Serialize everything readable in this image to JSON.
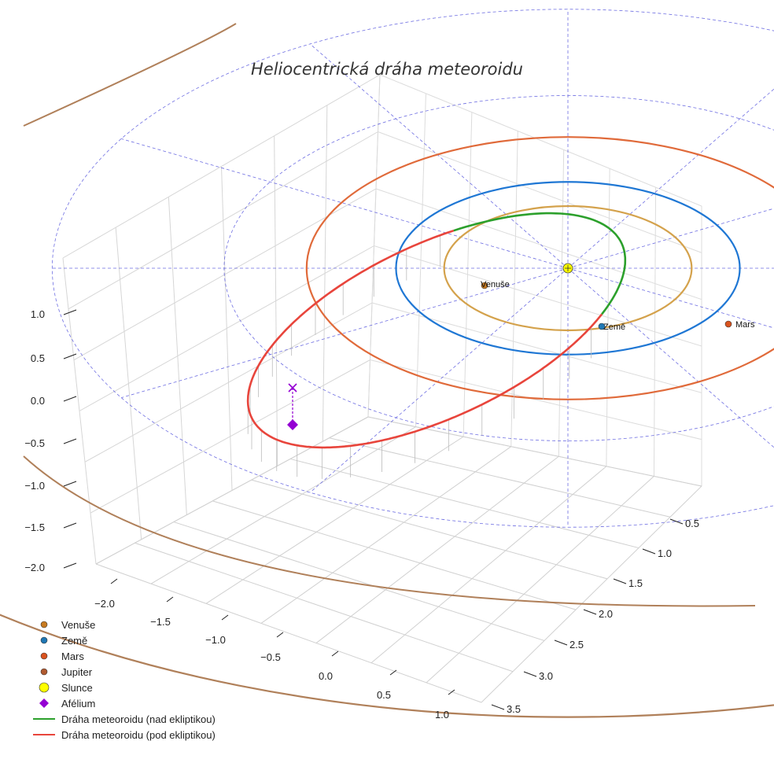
{
  "chart_data": {
    "type": "3d-line",
    "title": "Heliocentrická dráha meteoroidu",
    "x_ticks": [
      "−2.0",
      "−1.5",
      "−1.0",
      "−0.5",
      "0.0",
      "0.5",
      "1.0"
    ],
    "y_ticks": [
      "0.5",
      "1.0",
      "1.5",
      "2.0",
      "2.5",
      "3.0",
      "3.5"
    ],
    "z_ticks": [
      "1.0",
      "0.5",
      "0.0",
      "−0.5",
      "−1.0",
      "−1.5",
      "−2.0"
    ],
    "xlim": [
      -2.2,
      1.2
    ],
    "ylim": [
      0.2,
      3.7
    ],
    "zlim": [
      -2.1,
      1.4
    ],
    "planets": [
      {
        "name": "Venuše",
        "orbit_radius_au": 0.72,
        "color": "#d4a24c",
        "marker_color": "#c77a20",
        "label": "Venuše"
      },
      {
        "name": "Země",
        "orbit_radius_au": 1.0,
        "color": "#1f77d4",
        "marker_color": "#1f77b4",
        "label": "Země"
      },
      {
        "name": "Mars",
        "orbit_radius_au": 1.52,
        "color": "#e06a3a",
        "marker_color": "#d9531e",
        "label": "Mars"
      },
      {
        "name": "Jupiter",
        "orbit_radius_au": 5.2,
        "color": "#b0805a",
        "marker_color": "#b05a30"
      }
    ],
    "sun": {
      "name": "Slunce",
      "color": "#ffff00"
    },
    "aphelion": {
      "name": "Afélium",
      "color": "#9400d3"
    },
    "meteoroid": {
      "above_label": "Dráha meteoroidu (nad ekliptikou)",
      "above_color": "#2ca02c",
      "below_label": "Dráha meteoroidu (pod ekliptikou)",
      "below_color": "#e8453c"
    },
    "ecliptic_grid_radii_au": [
      1,
      2,
      3
    ]
  },
  "legend": {
    "items": [
      {
        "label": "Venuše",
        "kind": "dot",
        "color": "#c77a20"
      },
      {
        "label": "Země",
        "kind": "dot",
        "color": "#1f77b4"
      },
      {
        "label": "Mars",
        "kind": "dot",
        "color": "#d9531e"
      },
      {
        "label": "Jupiter",
        "kind": "dot",
        "color": "#b05a30"
      },
      {
        "label": "Slunce",
        "kind": "bigdot",
        "color": "#ffff00"
      },
      {
        "label": "Afélium",
        "kind": "diamond",
        "color": "#9400d3"
      },
      {
        "label": "Dráha meteoroidu (nad ekliptikou)",
        "kind": "line",
        "color": "#2ca02c"
      },
      {
        "label": "Dráha meteoroidu (pod ekliptikou)",
        "kind": "line",
        "color": "#e8453c"
      }
    ]
  }
}
